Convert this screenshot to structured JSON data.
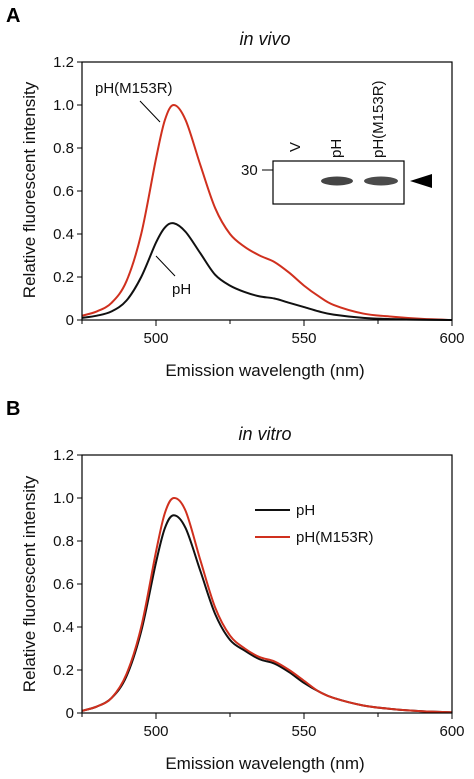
{
  "colors": {
    "ph": "#111111",
    "m153r": "#d0301e",
    "axis": "#000000"
  },
  "chart_data": [
    {
      "panel_label": "A",
      "type": "line",
      "title": "in vivo",
      "xlabel": "Emission wavelength (nm)",
      "ylabel": "Relative fluorescent intensity",
      "xlim": [
        475,
        600
      ],
      "ylim": [
        0,
        1.2
      ],
      "xticks": [
        500,
        550,
        600
      ],
      "yticks": [
        0,
        0.2,
        0.4,
        0.6,
        0.8,
        1.0,
        1.2
      ],
      "ytick_labels": [
        "0",
        "0.2",
        "0.4",
        "0.6",
        "0.8",
        "1.0",
        "1.2"
      ],
      "series": [
        {
          "name": "pH(M153R)",
          "color": "#d0301e",
          "x": [
            475,
            480,
            485,
            490,
            495,
            500,
            503,
            506,
            510,
            515,
            520,
            525,
            530,
            535,
            540,
            545,
            550,
            555,
            560,
            570,
            580,
            590,
            600
          ],
          "y": [
            0.02,
            0.04,
            0.08,
            0.18,
            0.4,
            0.75,
            0.93,
            1.0,
            0.93,
            0.72,
            0.52,
            0.4,
            0.34,
            0.3,
            0.27,
            0.22,
            0.16,
            0.11,
            0.07,
            0.03,
            0.015,
            0.005,
            0.0
          ]
        },
        {
          "name": "pH",
          "color": "#111111",
          "x": [
            475,
            480,
            485,
            490,
            495,
            500,
            503,
            506,
            510,
            515,
            520,
            525,
            530,
            535,
            540,
            545,
            550,
            555,
            560,
            570,
            580,
            590,
            600
          ],
          "y": [
            0.01,
            0.02,
            0.04,
            0.09,
            0.2,
            0.36,
            0.43,
            0.45,
            0.41,
            0.31,
            0.21,
            0.16,
            0.13,
            0.11,
            0.1,
            0.08,
            0.06,
            0.04,
            0.025,
            0.01,
            0.004,
            0.001,
            0.0
          ]
        }
      ],
      "annotations": {
        "m153r": "pH(M153R)",
        "ph": "pH"
      },
      "inset": {
        "lane_labels": [
          "V",
          "pH",
          "pH(M153R)"
        ],
        "marker": "30",
        "arrow": "arrowhead-left-icon"
      }
    },
    {
      "panel_label": "B",
      "type": "line",
      "title": "in vitro",
      "xlabel": "Emission wavelength (nm)",
      "ylabel": "Relative fluorescent intensity",
      "xlim": [
        475,
        600
      ],
      "ylim": [
        0,
        1.2
      ],
      "xticks": [
        500,
        550,
        600
      ],
      "yticks": [
        0,
        0.2,
        0.4,
        0.6,
        0.8,
        1.0,
        1.2
      ],
      "ytick_labels": [
        "0",
        "0.2",
        "0.4",
        "0.6",
        "0.8",
        "1.0",
        "1.2"
      ],
      "legend": "upper-right",
      "series": [
        {
          "name": "pH",
          "color": "#111111",
          "x": [
            475,
            480,
            485,
            490,
            495,
            500,
            503,
            506,
            510,
            515,
            520,
            525,
            530,
            535,
            540,
            545,
            550,
            555,
            560,
            570,
            580,
            590,
            600
          ],
          "y": [
            0.01,
            0.03,
            0.07,
            0.17,
            0.38,
            0.7,
            0.86,
            0.92,
            0.86,
            0.66,
            0.46,
            0.34,
            0.29,
            0.25,
            0.23,
            0.19,
            0.14,
            0.1,
            0.07,
            0.035,
            0.018,
            0.008,
            0.003
          ]
        },
        {
          "name": "pH(M153R)",
          "color": "#d0301e",
          "x": [
            475,
            480,
            485,
            490,
            495,
            500,
            503,
            506,
            510,
            515,
            520,
            525,
            530,
            535,
            540,
            545,
            550,
            555,
            560,
            570,
            580,
            590,
            600
          ],
          "y": [
            0.01,
            0.03,
            0.07,
            0.18,
            0.4,
            0.75,
            0.93,
            1.0,
            0.94,
            0.71,
            0.49,
            0.36,
            0.3,
            0.26,
            0.24,
            0.2,
            0.15,
            0.1,
            0.07,
            0.035,
            0.018,
            0.008,
            0.003
          ]
        }
      ]
    }
  ]
}
